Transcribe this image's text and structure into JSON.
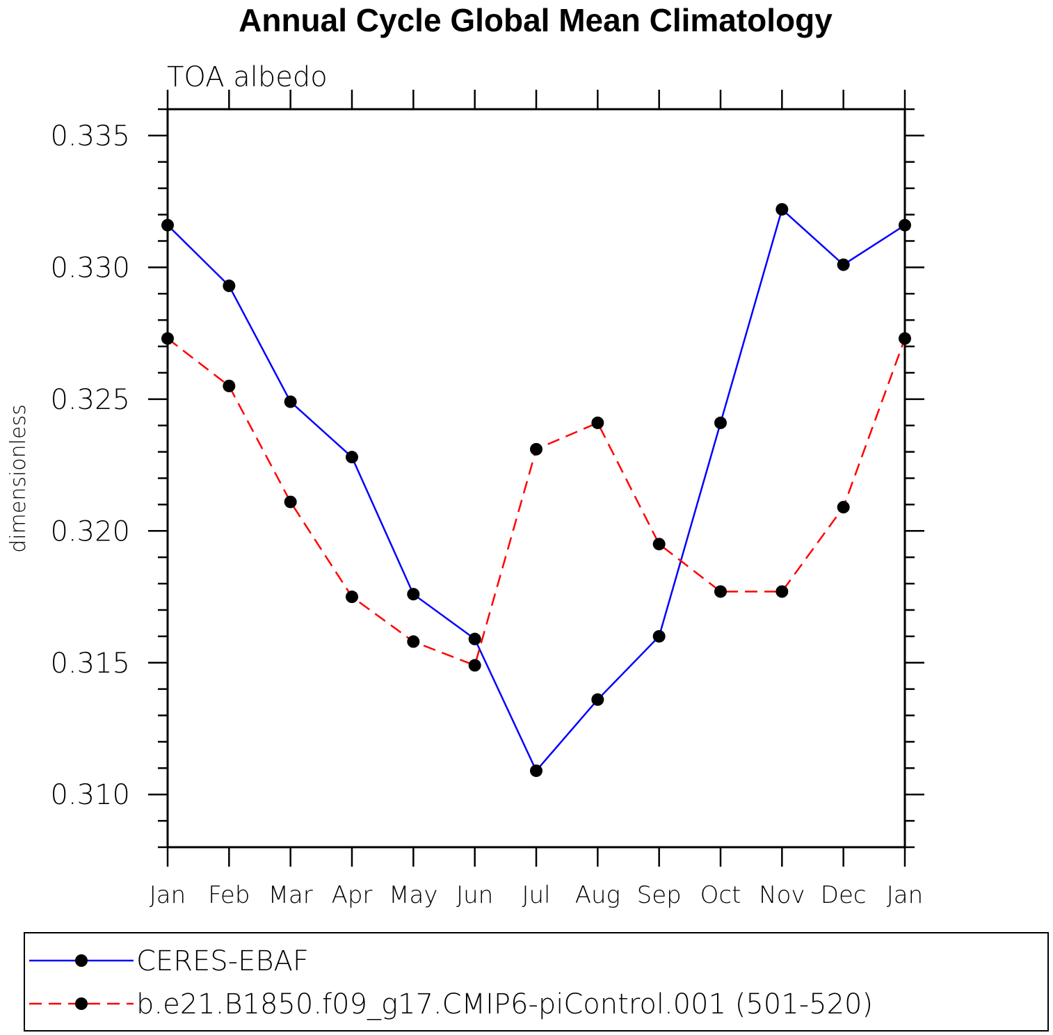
{
  "chart_data": {
    "type": "line",
    "title": "Annual Cycle Global Mean Climatology",
    "subtitle": "TOA albedo",
    "xlabel": "",
    "ylabel": "dimensionless",
    "categories": [
      "Jan",
      "Feb",
      "Mar",
      "Apr",
      "May",
      "Jun",
      "Jul",
      "Aug",
      "Sep",
      "Oct",
      "Nov",
      "Dec",
      "Jan"
    ],
    "ylim": [
      0.308,
      0.336
    ],
    "yticks": [
      0.31,
      0.315,
      0.32,
      0.325,
      0.33,
      0.335
    ],
    "ytick_labels": [
      "0.310",
      "0.315",
      "0.320",
      "0.325",
      "0.330",
      "0.335"
    ],
    "grid": false,
    "legend_position": "bottom",
    "series": [
      {
        "name": "CERES-EBAF",
        "color": "#0000ff",
        "line_style": "solid",
        "marker": "filled-circle",
        "values": [
          0.3316,
          0.3293,
          0.3249,
          0.3228,
          0.3176,
          0.3159,
          0.3109,
          0.3136,
          0.316,
          0.3241,
          0.3322,
          0.3301,
          0.3316
        ]
      },
      {
        "name": "b.e21.B1850.f09_g17.CMIP6-piControl.001 (501-520)",
        "color": "#ff0000",
        "line_style": "dashed",
        "marker": "filled-circle",
        "values": [
          0.3273,
          0.3255,
          0.3211,
          0.3175,
          0.3158,
          0.3149,
          0.3231,
          0.3241,
          0.3195,
          0.3177,
          0.3177,
          0.3209,
          0.3273
        ]
      }
    ]
  }
}
